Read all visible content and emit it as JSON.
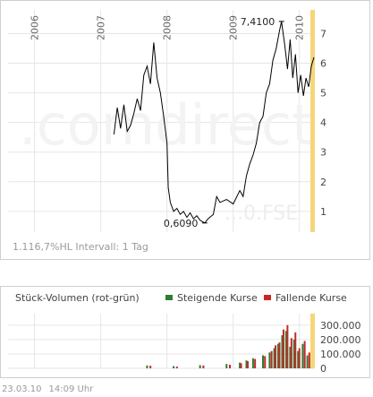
{
  "status_line": "1.116,7%HL  Intervall: 1 Tag",
  "volume_title": "Stück-Volumen (rot-grün)",
  "legend": {
    "rising": "Steigende Kurse",
    "falling": "Fallende Kurse",
    "rising_color": "#2e7d32",
    "falling_color": "#c62828"
  },
  "footer": {
    "date": "23.03.10",
    "time": "14:09 Uhr"
  },
  "watermark": {
    "brand": ".comdirect",
    "symbol": "...0.FSE"
  },
  "colors": {
    "price_line": "#000000",
    "current_marker": "#f5d67a",
    "grid": "#e6e6e6"
  },
  "chart_data": [
    {
      "type": "line",
      "title": "",
      "xlabel": "",
      "ylabel": "",
      "year_labels": [
        "2006",
        "2007",
        "2008",
        "2009",
        "2010"
      ],
      "x_ticks": [
        2006.0,
        2007.0,
        2008.0,
        2009.0,
        2010.0
      ],
      "xlim": [
        2005.6,
        2010.22
      ],
      "y_ticks": [
        1,
        2,
        3,
        4,
        5,
        6,
        7
      ],
      "ylim": [
        0.3,
        7.8
      ],
      "grid": true,
      "annotations": [
        {
          "label": "7,4100",
          "x": 2009.73,
          "y": 7.41
        },
        {
          "label": "0,6090",
          "x": 2008.57,
          "y": 0.609
        }
      ],
      "series": [
        {
          "x": [
            2007.2,
            2007.25,
            2007.3,
            2007.35,
            2007.4,
            2007.45,
            2007.5,
            2007.55,
            2007.6,
            2007.65,
            2007.7,
            2007.75,
            2007.8,
            2007.85,
            2007.9,
            2007.95,
            2008.0,
            2008.02,
            2008.05,
            2008.1,
            2008.15,
            2008.2,
            2008.25,
            2008.3,
            2008.35,
            2008.4,
            2008.45,
            2008.5,
            2008.57,
            2008.62,
            2008.7,
            2008.75,
            2008.8,
            2008.9,
            2009.0,
            2009.1,
            2009.15,
            2009.2,
            2009.25,
            2009.3,
            2009.35,
            2009.4,
            2009.45,
            2009.5,
            2009.55,
            2009.6,
            2009.65,
            2009.7,
            2009.73,
            2009.78,
            2009.82,
            2009.86,
            2009.9,
            2009.94,
            2009.98,
            2010.02,
            2010.06,
            2010.1,
            2010.14,
            2010.18,
            2010.22
          ],
          "y": [
            3.6,
            4.5,
            3.8,
            4.6,
            3.7,
            3.9,
            4.3,
            4.8,
            4.4,
            5.6,
            5.9,
            5.3,
            6.7,
            5.5,
            5.0,
            4.2,
            3.3,
            1.8,
            1.3,
            1.0,
            1.1,
            0.9,
            1.0,
            0.8,
            0.95,
            0.75,
            0.85,
            0.7,
            0.609,
            0.75,
            0.9,
            1.5,
            1.3,
            1.4,
            1.25,
            1.7,
            1.5,
            2.2,
            2.6,
            2.9,
            3.3,
            4.0,
            4.2,
            5.0,
            5.3,
            6.1,
            6.5,
            7.1,
            7.41,
            6.6,
            5.8,
            6.8,
            5.5,
            6.3,
            5.0,
            5.6,
            4.9,
            5.5,
            5.2,
            5.9,
            6.2
          ]
        }
      ]
    },
    {
      "type": "bar",
      "title": "",
      "ylabel": "",
      "y_tick_labels": [
        "0",
        "100.000",
        "200.000",
        "300.000"
      ],
      "y_ticks": [
        0,
        100000,
        200000,
        300000
      ],
      "ylim": [
        0,
        380000
      ],
      "xlim": [
        2005.6,
        2010.22
      ],
      "series": [
        {
          "name": "Steigende Kurse",
          "color": "#2e7d32",
          "x": [
            2007.7,
            2008.1,
            2008.5,
            2008.9,
            2009.1,
            2009.2,
            2009.3,
            2009.45,
            2009.55,
            2009.62,
            2009.68,
            2009.74,
            2009.8,
            2009.86,
            2009.92,
            2009.98,
            2010.05,
            2010.12
          ],
          "values": [
            20000,
            15000,
            22000,
            30000,
            40000,
            55000,
            70000,
            90000,
            110000,
            140000,
            170000,
            230000,
            260000,
            150000,
            200000,
            120000,
            170000,
            90000
          ]
        },
        {
          "name": "Fallende Kurse",
          "color": "#c62828",
          "x": [
            2007.75,
            2008.15,
            2008.55,
            2008.95,
            2009.12,
            2009.22,
            2009.33,
            2009.48,
            2009.58,
            2009.64,
            2009.7,
            2009.76,
            2009.82,
            2009.88,
            2009.94,
            2010.0,
            2010.08,
            2010.15
          ],
          "values": [
            18000,
            12000,
            20000,
            25000,
            35000,
            50000,
            65000,
            85000,
            120000,
            160000,
            180000,
            270000,
            300000,
            210000,
            250000,
            140000,
            190000,
            110000
          ]
        }
      ]
    }
  ]
}
